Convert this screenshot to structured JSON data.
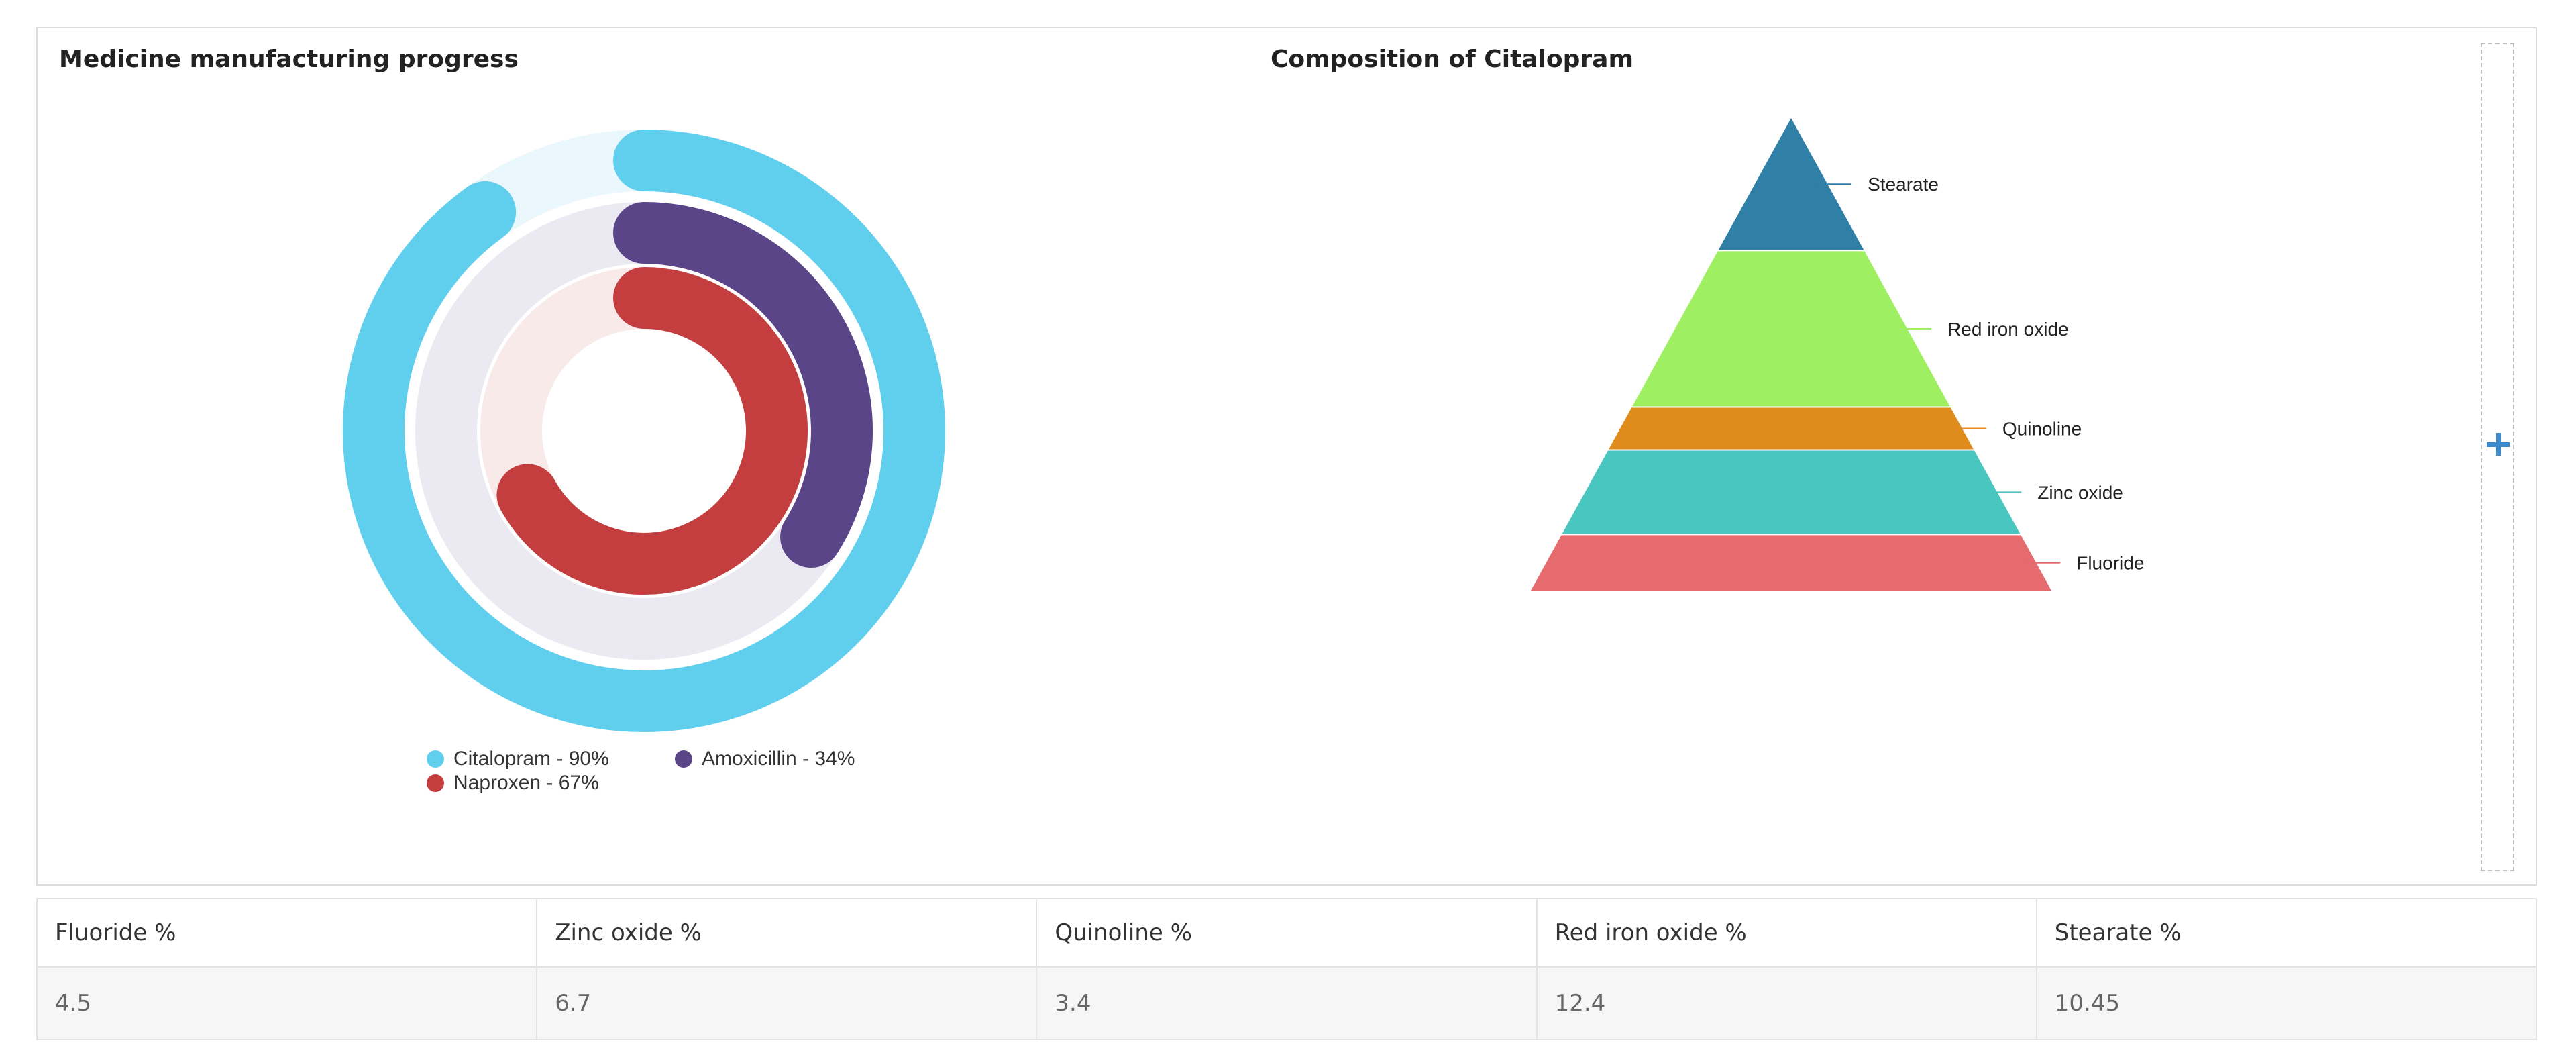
{
  "left_card": {
    "title": "Medicine manufacturing progress"
  },
  "right_card": {
    "title": "Composition of Citalopram"
  },
  "chart_data": [
    {
      "type": "radial-bar",
      "title": "Medicine manufacturing progress",
      "unit": "%",
      "series": [
        {
          "name": "Citalopram",
          "value": 90,
          "color": "#5fcfed",
          "track_color": "#eaf7fc",
          "legend": "Citalopram - 90%"
        },
        {
          "name": "Amoxicillin",
          "value": 34,
          "color": "#5b4589",
          "track_color": "#ebe9f1",
          "legend": "Amoxicillin - 34%"
        },
        {
          "name": "Naproxen",
          "value": 67,
          "color": "#c43d3f",
          "track_color": "#f9eaea",
          "legend": "Naproxen - 67%"
        }
      ],
      "legend_placement": "bottom"
    },
    {
      "type": "pyramid",
      "title": "Composition of Citalopram",
      "series": [
        {
          "name": "Fluoride",
          "value": 4.5,
          "color": "#e56b6f"
        },
        {
          "name": "Zinc oxide",
          "value": 6.7,
          "color": "#49c6c0"
        },
        {
          "name": "Quinoline",
          "value": 3.4,
          "color": "#e08c1d"
        },
        {
          "name": "Red iron oxide",
          "value": 12.4,
          "color": "#9ef062"
        },
        {
          "name": "Stearate",
          "value": 10.45,
          "color": "#2f7fa6"
        }
      ]
    }
  ],
  "table": {
    "headers": [
      "Fluoride %",
      "Zinc oxide %",
      "Quinoline %",
      "Red iron oxide %",
      "Stearate %"
    ],
    "rows": [
      [
        "4.5",
        "6.7",
        "3.4",
        "12.4",
        "10.45"
      ]
    ]
  },
  "icons": {
    "add": "plus-icon"
  }
}
